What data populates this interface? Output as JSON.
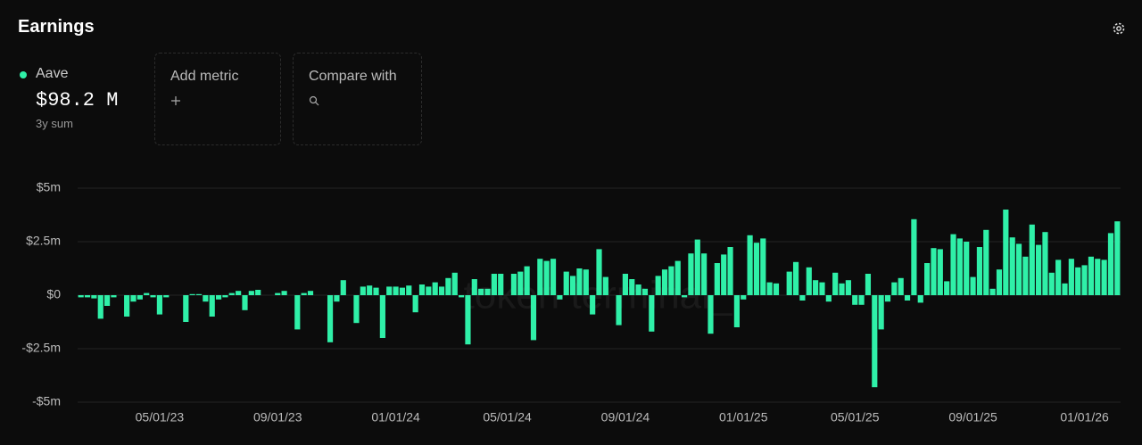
{
  "chart_data": {
    "type": "bar",
    "title": "Earnings",
    "series": [
      {
        "name": "Aave",
        "color": "#2ff0a8",
        "values": [
          -0.1,
          -0.1,
          -0.15,
          -1.1,
          -0.5,
          -0.1,
          0,
          -1.0,
          -0.3,
          -0.2,
          0.1,
          -0.1,
          -0.9,
          -0.1,
          0,
          0,
          -1.25,
          0.05,
          0.05,
          -0.3,
          -1.0,
          -0.2,
          -0.1,
          0.1,
          0.2,
          -0.7,
          0.2,
          0.25,
          0,
          0,
          0.1,
          0.2,
          0,
          -1.6,
          0.1,
          0.2,
          0,
          0,
          -2.2,
          -0.3,
          0.7,
          0,
          -1.3,
          0.4,
          0.45,
          0.35,
          -2.0,
          0.4,
          0.4,
          0.35,
          0.45,
          -0.8,
          0.5,
          0.4,
          0.6,
          0.4,
          0.8,
          1.05,
          -0.1,
          -2.3,
          0.75,
          0.3,
          0.3,
          1.0,
          1.0,
          0,
          1.0,
          1.1,
          1.35,
          -2.1,
          1.7,
          1.6,
          1.7,
          -0.2,
          1.1,
          0.9,
          1.25,
          1.2,
          -0.9,
          2.15,
          0.85,
          0,
          -1.4,
          1.0,
          0.75,
          0.5,
          0.3,
          -1.7,
          0.9,
          1.2,
          1.35,
          1.6,
          -0.1,
          1.95,
          2.6,
          1.95,
          -1.8,
          1.5,
          1.9,
          2.25,
          -1.5,
          -0.2,
          2.8,
          2.45,
          2.65,
          0.6,
          0.55,
          0,
          1.1,
          1.55,
          -0.25,
          1.3,
          0.7,
          0.6,
          -0.3,
          1.05,
          0.55,
          0.7,
          -0.45,
          -0.45,
          1.0,
          -4.3,
          -1.6,
          -0.3,
          0.6,
          0.8,
          -0.25,
          3.55,
          -0.35,
          1.5,
          2.2,
          2.15,
          0.65,
          2.85,
          2.65,
          2.5,
          0.85,
          2.25,
          3.05,
          0.3,
          1.2,
          4.0,
          2.7,
          2.4,
          1.8,
          3.3,
          2.35,
          2.95,
          1.05,
          1.65,
          0.55,
          1.7,
          1.3,
          1.4,
          1.8,
          1.7,
          1.65,
          2.9,
          3.45
        ]
      }
    ],
    "categories": [
      null,
      null,
      null,
      null,
      null,
      null,
      null,
      null,
      null,
      null,
      null,
      null,
      "05/01/23",
      null,
      null,
      null,
      null,
      null,
      null,
      null,
      null,
      null,
      null,
      null,
      null,
      null,
      null,
      null,
      null,
      null,
      "09/01/23",
      null,
      null,
      null,
      null,
      null,
      null,
      null,
      null,
      null,
      null,
      null,
      null,
      null,
      null,
      null,
      null,
      null,
      "01/01/24",
      null,
      null,
      null,
      null,
      null,
      null,
      null,
      null,
      null,
      null,
      null,
      null,
      null,
      null,
      null,
      null,
      "05/01/24",
      null,
      null,
      null,
      null,
      null,
      null,
      null,
      null,
      null,
      null,
      null,
      null,
      null,
      null,
      null,
      null,
      null,
      "09/01/24",
      null,
      null,
      null,
      null,
      null,
      null,
      null,
      null,
      null,
      null,
      null,
      null,
      null,
      null,
      null,
      null,
      null,
      "01/01/25",
      null,
      null,
      null,
      null,
      null,
      null,
      null,
      null,
      null,
      null,
      null,
      null,
      null,
      null,
      null,
      null,
      "05/01/25",
      null,
      null,
      null,
      null,
      null,
      null,
      null,
      null,
      null,
      null,
      null,
      null,
      null,
      null,
      null,
      null,
      null,
      "09/01/25",
      null,
      null,
      null,
      null,
      null,
      null,
      null,
      null,
      null,
      null,
      null,
      null,
      null,
      null,
      null,
      null,
      "01/01/26",
      null,
      null,
      null,
      null,
      null
    ],
    "ylim": [
      -5,
      5
    ],
    "yticks": [
      {
        "value": 5,
        "label": "$5m"
      },
      {
        "value": 2.5,
        "label": "$2.5m"
      },
      {
        "value": 0,
        "label": "$0"
      },
      {
        "value": -2.5,
        "label": "-$2.5m"
      },
      {
        "value": -5,
        "label": "-$5m"
      }
    ],
    "grid": true
  },
  "summary": {
    "value": "$98.2 M",
    "period": "3y sum"
  },
  "controls": {
    "add_metric": "Add metric",
    "compare_with": "Compare with"
  },
  "watermark": "token terminal_"
}
